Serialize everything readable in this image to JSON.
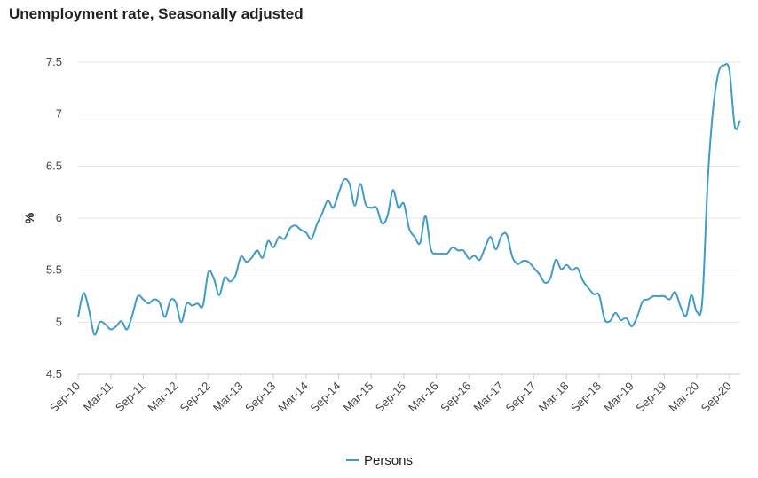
{
  "chart_data": {
    "type": "line",
    "title": "Unemployment rate, Seasonally adjusted",
    "xlabel": "",
    "ylabel": "%",
    "ylim": [
      4.5,
      7.5
    ],
    "yticks": [
      "4.5",
      "5",
      "5.5",
      "6",
      "6.5",
      "7",
      "7.5"
    ],
    "grid": true,
    "legend_position": "bottom-center",
    "x_tick_labels": [
      "Sep-10",
      "Mar-11",
      "Sep-11",
      "Mar-12",
      "Sep-12",
      "Mar-13",
      "Sep-13",
      "Mar-14",
      "Sep-14",
      "Mar-15",
      "Sep-15",
      "Mar-16",
      "Sep-16",
      "Mar-17",
      "Sep-17",
      "Mar-18",
      "Sep-18",
      "Mar-19",
      "Sep-19",
      "Mar-20",
      "Sep-20"
    ],
    "colors": {
      "series": "#3d9cc9",
      "grid": "#e6e6e6",
      "axis": "#cccccc"
    },
    "series": [
      {
        "name": "Persons",
        "start": "Sep-10",
        "values": [
          5.05,
          5.28,
          5.12,
          4.88,
          5.0,
          4.98,
          4.93,
          4.96,
          5.01,
          4.93,
          5.07,
          5.25,
          5.22,
          5.18,
          5.22,
          5.19,
          5.05,
          5.21,
          5.19,
          5.0,
          5.18,
          5.16,
          5.18,
          5.16,
          5.48,
          5.42,
          5.26,
          5.43,
          5.39,
          5.45,
          5.63,
          5.58,
          5.62,
          5.69,
          5.62,
          5.78,
          5.72,
          5.82,
          5.8,
          5.9,
          5.93,
          5.89,
          5.86,
          5.8,
          5.94,
          6.05,
          6.17,
          6.1,
          6.24,
          6.37,
          6.33,
          6.12,
          6.33,
          6.13,
          6.1,
          6.1,
          5.95,
          6.02,
          6.27,
          6.1,
          6.14,
          5.9,
          5.82,
          5.76,
          6.02,
          5.7,
          5.66,
          5.66,
          5.66,
          5.72,
          5.69,
          5.69,
          5.61,
          5.64,
          5.6,
          5.72,
          5.82,
          5.7,
          5.83,
          5.84,
          5.63,
          5.56,
          5.59,
          5.58,
          5.52,
          5.46,
          5.38,
          5.42,
          5.6,
          5.51,
          5.55,
          5.5,
          5.52,
          5.4,
          5.33,
          5.27,
          5.26,
          5.03,
          5.01,
          5.09,
          5.02,
          5.04,
          4.96,
          5.05,
          5.2,
          5.22,
          5.25,
          5.25,
          5.25,
          5.22,
          5.29,
          5.15,
          5.06,
          5.26,
          5.1,
          5.2,
          6.35,
          7.05,
          7.4,
          7.47,
          7.42,
          6.88,
          6.94
        ]
      }
    ]
  }
}
